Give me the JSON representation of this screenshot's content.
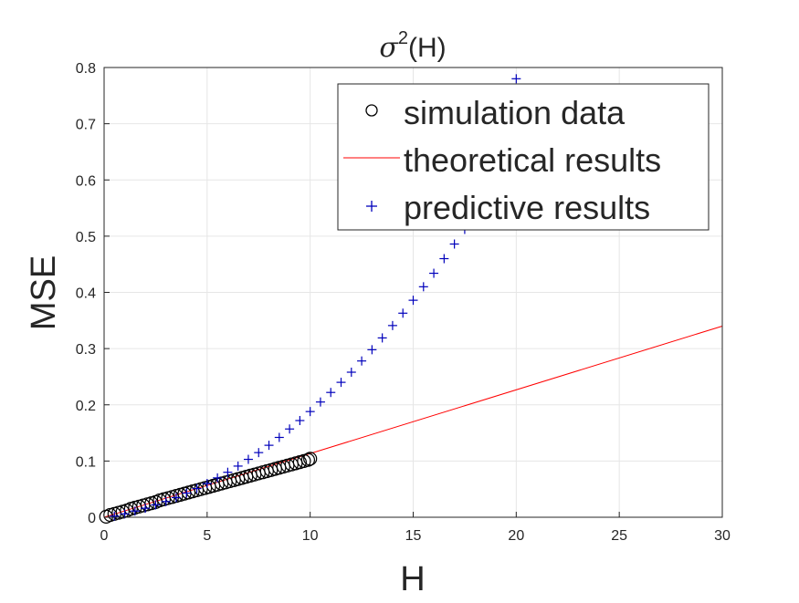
{
  "chart_data": {
    "type": "scatter",
    "title": {
      "symbol": "σ",
      "superscript": "2",
      "rest": "(H)"
    },
    "xlabel": "H",
    "ylabel": "MSE",
    "xlim": [
      0,
      30
    ],
    "ylim": [
      0,
      0.8
    ],
    "xticks": [
      0,
      5,
      10,
      15,
      20,
      25,
      30
    ],
    "yticks": [
      0,
      0.1,
      0.2,
      0.3,
      0.4,
      0.5,
      0.6,
      0.7,
      0.8
    ],
    "xtick_labels": [
      "0",
      "5",
      "10",
      "15",
      "20",
      "25",
      "30"
    ],
    "ytick_labels": [
      "0",
      "0.1",
      "0.2",
      "0.3",
      "0.4",
      "0.5",
      "0.6",
      "0.7",
      "0.8"
    ],
    "grid": true,
    "legend_position": "top-right",
    "colors": {
      "simulation": "#000000",
      "theoretical": "#ff0000",
      "predictive": "#0000bb"
    },
    "series": [
      {
        "name": "simulation data",
        "marker": "circle",
        "color": "#000000",
        "x": [
          0.1,
          0.3,
          0.5,
          0.7,
          0.9,
          1.1,
          1.3,
          1.5,
          1.7,
          1.9,
          2.1,
          2.3,
          2.5,
          2.7,
          2.9,
          3.1,
          3.3,
          3.5,
          3.7,
          3.9,
          4.1,
          4.3,
          4.5,
          4.7,
          4.9,
          5.1,
          5.3,
          5.5,
          5.7,
          5.9,
          6.1,
          6.3,
          6.5,
          6.7,
          6.9,
          7.1,
          7.3,
          7.5,
          7.7,
          7.9,
          8.1,
          8.3,
          8.5,
          8.7,
          8.9,
          9.1,
          9.3,
          9.5,
          9.7,
          9.9,
          10.0
        ],
        "y": [
          0.001,
          0.004,
          0.006,
          0.008,
          0.01,
          0.012,
          0.015,
          0.017,
          0.019,
          0.021,
          0.023,
          0.025,
          0.027,
          0.03,
          0.032,
          0.034,
          0.036,
          0.038,
          0.04,
          0.042,
          0.044,
          0.046,
          0.048,
          0.05,
          0.052,
          0.054,
          0.056,
          0.058,
          0.06,
          0.062,
          0.064,
          0.066,
          0.068,
          0.07,
          0.072,
          0.074,
          0.076,
          0.078,
          0.08,
          0.082,
          0.084,
          0.086,
          0.088,
          0.09,
          0.092,
          0.094,
          0.096,
          0.098,
          0.1,
          0.102,
          0.104
        ]
      },
      {
        "name": "theoretical results",
        "marker": "line",
        "color": "#ff0000",
        "x": [
          0,
          30
        ],
        "y": [
          0,
          0.34
        ]
      },
      {
        "name": "predictive results",
        "marker": "plus",
        "color": "#0000bb",
        "x": [
          0.5,
          1.0,
          1.5,
          2.0,
          2.5,
          3.0,
          3.5,
          4.0,
          4.5,
          5.0,
          5.5,
          6.0,
          6.5,
          7.0,
          7.5,
          8.0,
          8.5,
          9.0,
          9.5,
          10.0,
          10.5,
          11.0,
          11.5,
          12.0,
          12.5,
          13.0,
          13.5,
          14.0,
          14.5,
          15.0,
          15.5,
          16.0,
          16.5,
          17.0,
          17.5,
          18.0,
          18.5,
          19.0,
          19.5,
          20.0
        ],
        "y": [
          0.002,
          0.006,
          0.011,
          0.016,
          0.022,
          0.028,
          0.035,
          0.043,
          0.051,
          0.06,
          0.07,
          0.08,
          0.091,
          0.103,
          0.115,
          0.128,
          0.142,
          0.157,
          0.172,
          0.188,
          0.205,
          0.222,
          0.24,
          0.258,
          0.278,
          0.298,
          0.319,
          0.341,
          0.363,
          0.386,
          0.41,
          0.434,
          0.46,
          0.486,
          0.512,
          0.54,
          0.568,
          0.597,
          0.627,
          0.78
        ]
      }
    ],
    "legend": [
      {
        "label": "simulation data",
        "marker": "circle"
      },
      {
        "label": "theoretical results",
        "marker": "line"
      },
      {
        "label": "predictive results",
        "marker": "plus"
      }
    ]
  }
}
